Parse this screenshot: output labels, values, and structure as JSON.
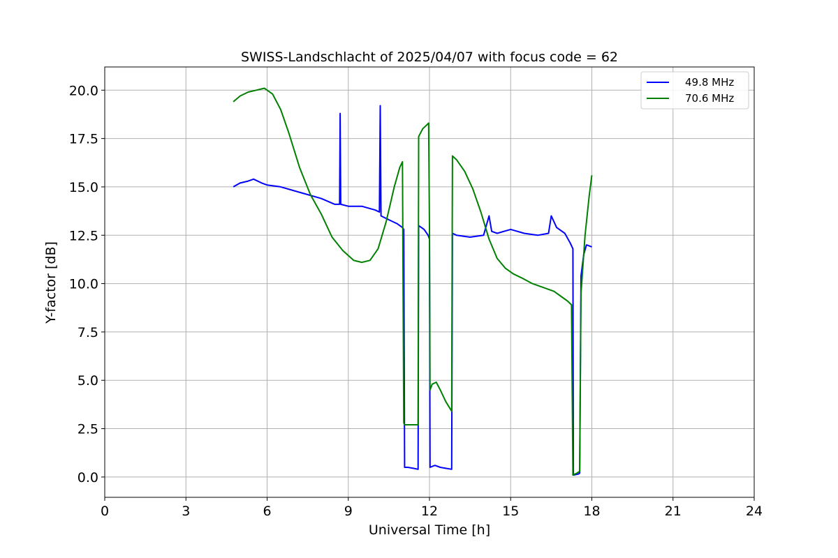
{
  "chart_data": {
    "type": "line",
    "title": "SWISS-Landschlacht of 2025/04/07 with focus code = 62",
    "xlabel": "Universal Time [h]",
    "ylabel": "Y-factor [dB]",
    "xlim": [
      0,
      24
    ],
    "ylim": [
      -1.05,
      21.2
    ],
    "xticks": [
      0,
      3,
      6,
      9,
      12,
      15,
      18,
      21,
      24
    ],
    "xtick_labels": [
      "0",
      "3",
      "6",
      "9",
      "12",
      "15",
      "18",
      "21",
      "24"
    ],
    "yticks": [
      0,
      2.5,
      5,
      7.5,
      10,
      12.5,
      15,
      17.5,
      20
    ],
    "ytick_labels": [
      "0.0",
      "2.5",
      "5.0",
      "7.5",
      "10.0",
      "12.5",
      "15.0",
      "17.5",
      "20.0"
    ],
    "grid": true,
    "legend_position": "top-right",
    "series": [
      {
        "name": "49.8 MHz",
        "color": "#0000ff",
        "x": [
          4.75,
          5.0,
          5.3,
          5.5,
          5.8,
          6.0,
          6.5,
          7.0,
          7.5,
          8.0,
          8.5,
          8.68,
          8.7,
          8.72,
          9.0,
          9.5,
          10.0,
          10.15,
          10.18,
          10.21,
          10.5,
          10.8,
          11.0,
          11.05,
          11.08,
          11.2,
          11.4,
          11.58,
          11.6,
          11.8,
          11.95,
          12.0,
          12.02,
          12.2,
          12.4,
          12.6,
          12.82,
          12.85,
          13.0,
          13.5,
          14.0,
          14.2,
          14.3,
          14.5,
          15.0,
          15.5,
          16.0,
          16.4,
          16.5,
          16.7,
          17.0,
          17.2,
          17.3,
          17.32,
          17.5,
          17.55,
          17.6,
          17.7,
          17.8,
          18.0
        ],
        "y": [
          15.0,
          15.2,
          15.3,
          15.4,
          15.2,
          15.1,
          15.0,
          14.8,
          14.6,
          14.4,
          14.1,
          14.1,
          18.8,
          14.1,
          14.0,
          14.0,
          13.8,
          13.7,
          19.2,
          13.5,
          13.3,
          13.1,
          12.9,
          12.8,
          0.5,
          0.5,
          0.45,
          0.4,
          13.0,
          12.8,
          12.5,
          12.3,
          0.5,
          0.6,
          0.5,
          0.45,
          0.4,
          12.6,
          12.5,
          12.4,
          12.5,
          13.5,
          12.7,
          12.6,
          12.8,
          12.6,
          12.5,
          12.6,
          13.5,
          12.9,
          12.6,
          12.1,
          11.8,
          0.1,
          0.15,
          0.2,
          10.4,
          11.5,
          12.0,
          11.9
        ]
      },
      {
        "name": "70.6 MHz",
        "color": "#008000",
        "x": [
          4.75,
          5.0,
          5.3,
          5.6,
          5.9,
          6.2,
          6.5,
          6.8,
          7.2,
          7.6,
          8.0,
          8.4,
          8.8,
          9.2,
          9.5,
          9.8,
          10.1,
          10.4,
          10.7,
          10.9,
          11.0,
          11.05,
          11.08,
          11.2,
          11.4,
          11.58,
          11.6,
          11.75,
          11.9,
          11.97,
          12.0,
          12.02,
          12.1,
          12.25,
          12.4,
          12.6,
          12.82,
          12.85,
          13.0,
          13.3,
          13.6,
          13.9,
          14.2,
          14.5,
          14.8,
          15.1,
          15.4,
          15.8,
          16.2,
          16.6,
          16.9,
          17.1,
          17.25,
          17.3,
          17.45,
          17.55,
          17.6,
          17.75,
          17.9,
          18.0
        ],
        "y": [
          19.4,
          19.7,
          19.9,
          20.0,
          20.1,
          19.8,
          19.0,
          17.8,
          16.0,
          14.6,
          13.6,
          12.4,
          11.7,
          11.2,
          11.1,
          11.2,
          11.8,
          13.2,
          15.0,
          16.0,
          16.3,
          2.8,
          2.7,
          2.7,
          2.7,
          2.7,
          17.6,
          18.0,
          18.2,
          18.3,
          12.8,
          4.5,
          4.8,
          4.9,
          4.5,
          3.9,
          3.4,
          16.6,
          16.4,
          15.8,
          14.9,
          13.7,
          12.3,
          11.3,
          10.8,
          10.5,
          10.3,
          10.0,
          9.8,
          9.6,
          9.3,
          9.1,
          8.9,
          0.1,
          0.2,
          0.3,
          9.5,
          12.5,
          14.5,
          15.6
        ]
      }
    ]
  }
}
